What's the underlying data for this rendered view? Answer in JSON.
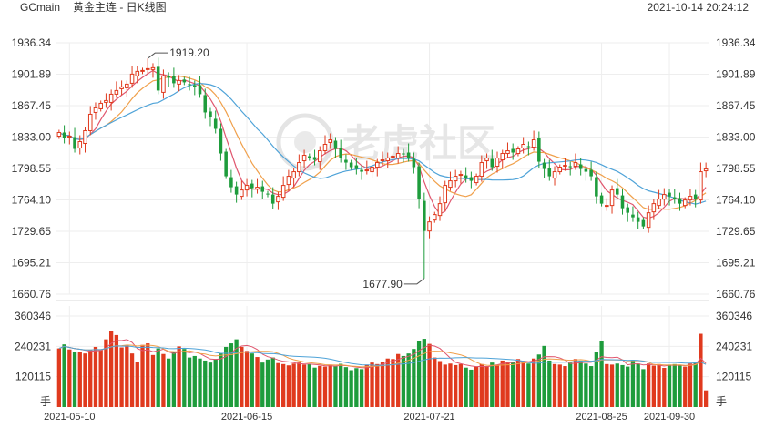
{
  "header": {
    "symbol": "GCmain",
    "title": "黄金主连 - 日K线图",
    "timestamp": "2021-10-14 20:24:12"
  },
  "watermark": "老虎社区",
  "colors": {
    "up": "#e03a1e",
    "down": "#1e9c3c",
    "ma_fast": "#e0566e",
    "ma_mid": "#f0a04b",
    "ma_slow": "#4fa3d8"
  },
  "chart_data": [
    {
      "type": "candlestick",
      "price_ticks": [
        "1936.34",
        "1901.89",
        "1867.45",
        "1833.00",
        "1798.55",
        "1764.10",
        "1729.65",
        "1695.21",
        "1660.76"
      ],
      "ylim": [
        1660.76,
        1936.34
      ],
      "x_ticks": [
        "2021-05-10",
        "2021-06-15",
        "2021-07-21",
        "2021-08-25",
        "2021-09-30"
      ],
      "annotations": [
        {
          "text": "1919.20",
          "value": 1919.2,
          "index": 17
        },
        {
          "text": "1677.90",
          "value": 1677.9,
          "index": 70
        }
      ],
      "close": [
        1838,
        1832,
        1834,
        1820,
        1828,
        1840,
        1858,
        1865,
        1870,
        1873,
        1880,
        1884,
        1888,
        1891,
        1902,
        1905,
        1906,
        1908,
        1909,
        1884,
        1900,
        1898,
        1892,
        1895,
        1893,
        1890,
        1888,
        1880,
        1860,
        1855,
        1842,
        1815,
        1790,
        1778,
        1770,
        1775,
        1780,
        1777,
        1778,
        1773,
        1770,
        1760,
        1768,
        1780,
        1790,
        1795,
        1805,
        1813,
        1810,
        1808,
        1818,
        1825,
        1830,
        1820,
        1810,
        1805,
        1800,
        1798,
        1795,
        1797,
        1800,
        1805,
        1808,
        1810,
        1812,
        1815,
        1814,
        1810,
        1800,
        1765,
        1730,
        1740,
        1748,
        1760,
        1780,
        1785,
        1790,
        1792,
        1788,
        1785,
        1790,
        1805,
        1810,
        1800,
        1810,
        1815,
        1818,
        1816,
        1820,
        1825,
        1822,
        1830,
        1806,
        1798,
        1790,
        1795,
        1800,
        1802,
        1800,
        1805,
        1798,
        1795,
        1790,
        1768,
        1760,
        1758,
        1775,
        1770,
        1755,
        1750,
        1745,
        1740,
        1735,
        1750,
        1760,
        1765,
        1770,
        1768,
        1765,
        1760,
        1764,
        1768,
        1765,
        1795,
        1798
      ],
      "ma_fast_color": "#e0566e",
      "ma_mid_color": "#f0a04b",
      "ma_slow_color": "#4fa3d8"
    },
    {
      "type": "bar",
      "volume_ticks": [
        "360346",
        "240231",
        "120115"
      ],
      "ylim": [
        0,
        400000
      ],
      "unit": "手",
      "volume": [
        232000,
        248000,
        228000,
        218000,
        218000,
        212000,
        226000,
        238000,
        225000,
        268000,
        302000,
        285000,
        236000,
        244000,
        212000,
        180000,
        246000,
        252000,
        206000,
        232000,
        210000,
        192000,
        220000,
        240000,
        230000,
        196000,
        202000,
        192000,
        184000,
        176000,
        190000,
        212000,
        238000,
        252000,
        268000,
        238000,
        222000,
        212000,
        198000,
        176000,
        188000,
        196000,
        174000,
        170000,
        165000,
        172000,
        176000,
        168000,
        170000,
        156000,
        163000,
        160000,
        168000,
        162000,
        171000,
        158000,
        146000,
        154000,
        150000,
        168000,
        176000,
        170000,
        180000,
        192000,
        190000,
        210000,
        202000,
        212000,
        230000,
        262000,
        270000,
        250000,
        196000,
        182000,
        168000,
        172000,
        166000,
        170000,
        156000,
        148000,
        160000,
        170000,
        162000,
        176000,
        168000,
        184000,
        178000,
        178000,
        190000,
        180000,
        172000,
        192000,
        208000,
        242000,
        184000,
        170000,
        168000,
        162000,
        176000,
        190000,
        184000,
        172000,
        162000,
        218000,
        260000,
        170000,
        168000,
        172000,
        166000,
        160000,
        186000,
        172000,
        150000,
        172000,
        164000,
        170000,
        155000,
        168000,
        170000,
        165000,
        160000,
        172000,
        180000,
        290000,
        66000
      ]
    }
  ]
}
